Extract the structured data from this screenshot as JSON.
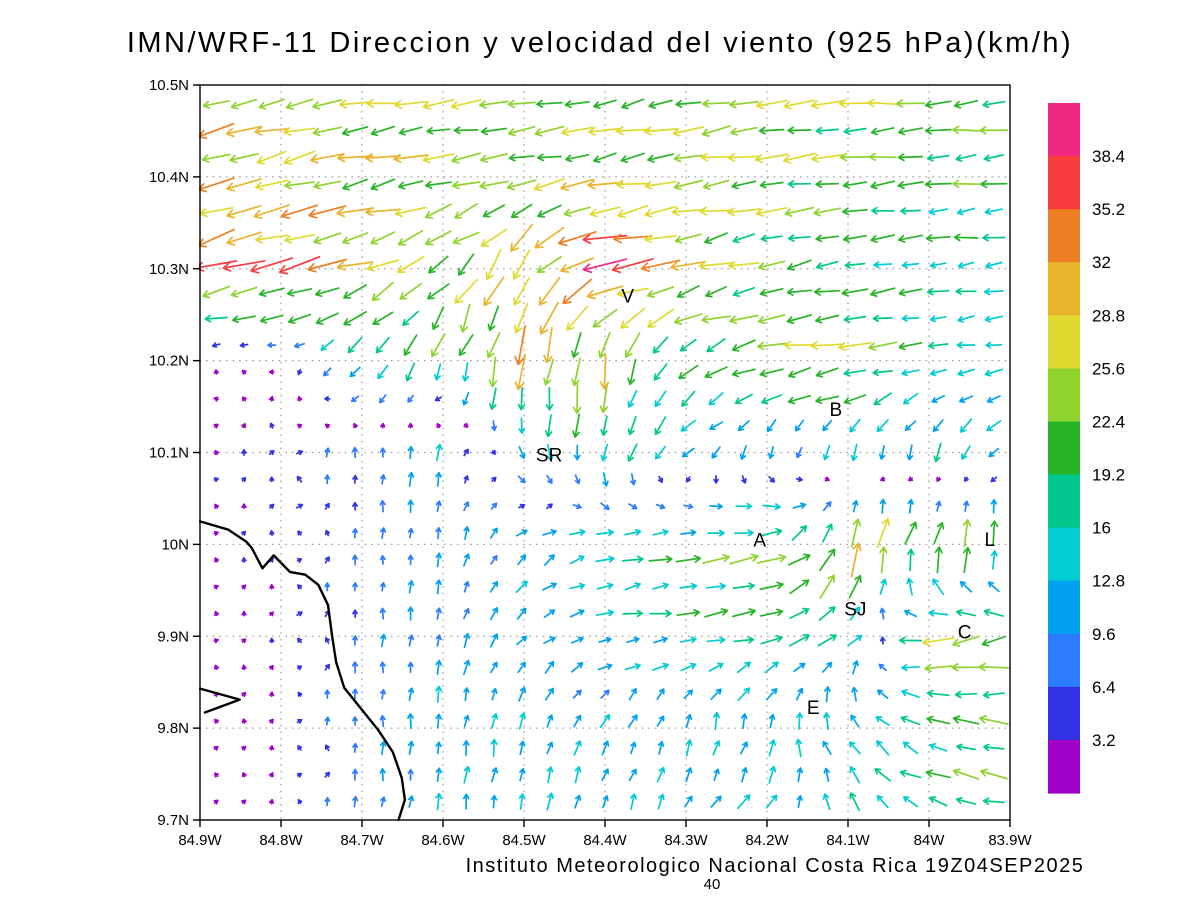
{
  "chart_data": {
    "type": "quiver",
    "title": "IMN/WRF-11 Direccion y velocidad del viento (925 hPa)(km/h)",
    "footer": "Instituto Meteorologico Nacional Costa Rica 19Z04SEP2025",
    "reference_vector_label": "40",
    "units": "km/h",
    "x_axis": {
      "labels": [
        "84.9W",
        "84.8W",
        "84.7W",
        "84.6W",
        "84.5W",
        "84.4W",
        "84.3W",
        "84.2W",
        "84.1W",
        "84W",
        "83.9W"
      ],
      "values": [
        -84.9,
        -84.8,
        -84.7,
        -84.6,
        -84.5,
        -84.4,
        -84.3,
        -84.2,
        -84.1,
        -84.0,
        -83.9
      ]
    },
    "y_axis": {
      "labels": [
        "10.5N",
        "10.4N",
        "10.3N",
        "10.2N",
        "10.1N",
        "10N",
        "9.9N",
        "9.8N",
        "9.7N"
      ],
      "values": [
        10.5,
        10.4,
        10.3,
        10.2,
        10.1,
        10.0,
        9.9,
        9.8,
        9.7
      ]
    },
    "colorbar": {
      "levels": [
        3.2,
        6.4,
        9.6,
        12.8,
        16,
        19.2,
        22.4,
        25.6,
        28.8,
        32,
        35.2,
        38.4
      ],
      "colors_low_to_high": [
        "#a000c8",
        "#3232e6",
        "#2b7cff",
        "#00a2f0",
        "#00ccd2",
        "#00c88c",
        "#28b428",
        "#8fd32e",
        "#e0da30",
        "#e9b32c",
        "#ef7f24",
        "#f93d3d",
        "#f02882"
      ]
    },
    "wind_field": {
      "description": "Coarse 0.1-degree control grid of wind components estimated from the plotted vectors; u eastward, v northward, km/h; rows ordered north to south",
      "lons": [
        -84.9,
        -84.8,
        -84.7,
        -84.6,
        -84.5,
        -84.4,
        -84.3,
        -84.2,
        -84.1,
        -84.0,
        -83.9
      ],
      "lats": [
        10.5,
        10.4,
        10.3,
        10.2,
        10.1,
        10.0,
        9.9,
        9.8,
        9.7
      ],
      "u": [
        [
          -26,
          -25,
          -24,
          -22,
          -22,
          -23,
          -24,
          -24,
          -23,
          -22,
          -22
        ],
        [
          -28,
          -27,
          -26,
          -24,
          -23,
          -24,
          -25,
          -24,
          -22,
          -20,
          -19
        ],
        [
          -34,
          -32,
          -26,
          -18,
          -14,
          -40,
          -26,
          -20,
          -18,
          -16,
          -15
        ],
        [
          -2,
          -3,
          -10,
          -6,
          -6,
          -2,
          -14,
          -24,
          -26,
          -15,
          -14
        ],
        [
          1,
          2,
          0,
          2,
          4,
          -4,
          -10,
          -2,
          -3,
          -4,
          -10
        ],
        [
          1,
          1,
          0,
          1,
          8,
          16,
          18,
          24,
          6,
          8,
          4
        ],
        [
          1,
          1,
          0,
          2,
          8,
          12,
          16,
          18,
          14,
          -26,
          -22
        ],
        [
          0,
          1,
          0,
          1,
          3,
          6,
          2,
          2,
          -8,
          -16,
          -22
        ],
        [
          0,
          1,
          1,
          2,
          2,
          3,
          6,
          10,
          -6,
          -18,
          -20
        ]
      ],
      "v": [
        [
          -6,
          -5,
          -4,
          -3,
          -3,
          -4,
          -4,
          -3,
          -2,
          -2,
          -2
        ],
        [
          -8,
          -7,
          -5,
          -4,
          -4,
          -5,
          -4,
          -3,
          -2,
          -2,
          -2
        ],
        [
          -10,
          -8,
          -8,
          -16,
          -26,
          -6,
          -6,
          -5,
          -3,
          -2,
          -2
        ],
        [
          1,
          1,
          -14,
          -18,
          -30,
          -26,
          -12,
          -4,
          -3,
          -2,
          -2
        ],
        [
          2,
          5,
          8,
          12,
          -10,
          -16,
          -8,
          -10,
          -12,
          -14,
          -8
        ],
        [
          3,
          3,
          7,
          10,
          8,
          4,
          3,
          4,
          28,
          26,
          22
        ],
        [
          2,
          3,
          8,
          11,
          8,
          2,
          2,
          4,
          10,
          -6,
          -4
        ],
        [
          2,
          2,
          9,
          12,
          12,
          10,
          12,
          14,
          12,
          6,
          2
        ],
        [
          2,
          3,
          8,
          12,
          13,
          12,
          10,
          10,
          14,
          6,
          4
        ]
      ]
    },
    "stations": [
      {
        "label": "V",
        "lon": -84.372,
        "lat": 10.27
      },
      {
        "label": "B",
        "lon": -84.115,
        "lat": 10.146
      },
      {
        "label": "SR",
        "lon": -84.469,
        "lat": 10.097
      },
      {
        "label": "A",
        "lon": -84.209,
        "lat": 10.004
      },
      {
        "label": "SJ",
        "lon": -84.091,
        "lat": 9.929
      },
      {
        "label": "C",
        "lon": -83.956,
        "lat": 9.904
      },
      {
        "label": "E",
        "lon": -84.143,
        "lat": 9.822
      },
      {
        "label": "L",
        "lon": -83.925,
        "lat": 10.005
      }
    ],
    "coastline_segments": [
      [
        [
          -84.9,
          10.025
        ],
        [
          -84.865,
          10.016
        ],
        [
          -84.843,
          10.003
        ],
        [
          -84.836,
          9.996
        ],
        [
          -84.823,
          9.974
        ],
        [
          -84.809,
          9.988
        ],
        [
          -84.789,
          9.97
        ],
        [
          -84.77,
          9.967
        ],
        [
          -84.754,
          9.956
        ],
        [
          -84.742,
          9.934
        ],
        [
          -84.737,
          9.901
        ],
        [
          -84.732,
          9.872
        ],
        [
          -84.722,
          9.844
        ],
        [
          -84.702,
          9.822
        ],
        [
          -84.68,
          9.798
        ],
        [
          -84.662,
          9.774
        ],
        [
          -84.651,
          9.746
        ],
        [
          -84.647,
          9.722
        ],
        [
          -84.655,
          9.7
        ]
      ],
      [
        [
          -84.9,
          9.843
        ],
        [
          -84.851,
          9.831
        ],
        [
          -84.894,
          9.817
        ]
      ]
    ],
    "layout": {
      "lon_range": [
        -84.9,
        -83.9
      ],
      "lat_range": [
        9.7,
        10.5
      ],
      "grid": "dotted",
      "colorbar_position": "right",
      "arrow_grid": {
        "cols": 29,
        "rows": 27
      }
    }
  }
}
